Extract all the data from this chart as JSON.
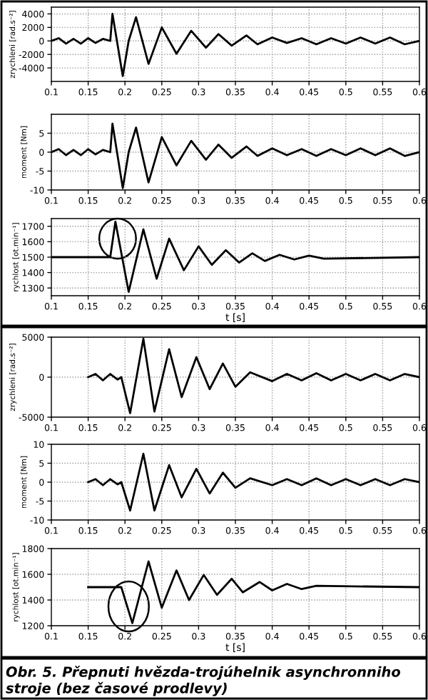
{
  "chart_data": [
    {
      "type": "line",
      "ylabel": "zrychleni [rad.s⁻²]",
      "grid": true,
      "line_style": "solid",
      "xlim": [
        0.1,
        0.6
      ],
      "xticks": [
        0.1,
        0.15,
        0.2,
        0.25,
        0.3,
        0.35,
        0.4,
        0.45,
        0.5,
        0.55,
        0.6
      ],
      "ylim": [
        -6000,
        5000
      ],
      "yticks": [
        -4000,
        -2000,
        0,
        2000,
        4000
      ],
      "series": [
        {
          "color": "#000000",
          "x": [
            0.1,
            0.11,
            0.12,
            0.13,
            0.14,
            0.15,
            0.16,
            0.17,
            0.18,
            0.183,
            0.197,
            0.205,
            0.215,
            0.232,
            0.25,
            0.27,
            0.29,
            0.31,
            0.327,
            0.345,
            0.365,
            0.38,
            0.4,
            0.42,
            0.44,
            0.46,
            0.48,
            0.5,
            0.52,
            0.54,
            0.56,
            0.58,
            0.6
          ],
          "values": [
            0,
            400,
            -400,
            300,
            -400,
            400,
            -300,
            300,
            0,
            4000,
            -5200,
            0,
            3500,
            -3400,
            2000,
            -1900,
            1500,
            -1000,
            1000,
            -700,
            800,
            -500,
            500,
            -300,
            400,
            -500,
            400,
            -400,
            500,
            -400,
            500,
            -500,
            0
          ]
        }
      ]
    },
    {
      "type": "line",
      "ylabel": "moment [Nm]",
      "grid": true,
      "line_style": "solid",
      "xlim": [
        0.1,
        0.6
      ],
      "xticks": [
        0.1,
        0.15,
        0.2,
        0.25,
        0.3,
        0.35,
        0.4,
        0.45,
        0.5,
        0.55,
        0.6
      ],
      "ylim": [
        -10,
        10
      ],
      "yticks": [
        -10,
        -5,
        0,
        5
      ],
      "series": [
        {
          "color": "#000000",
          "x": [
            0.1,
            0.11,
            0.12,
            0.13,
            0.14,
            0.15,
            0.16,
            0.17,
            0.18,
            0.183,
            0.197,
            0.205,
            0.215,
            0.232,
            0.25,
            0.27,
            0.29,
            0.31,
            0.327,
            0.345,
            0.365,
            0.38,
            0.4,
            0.42,
            0.44,
            0.46,
            0.48,
            0.5,
            0.52,
            0.54,
            0.56,
            0.58,
            0.6
          ],
          "values": [
            0,
            0.8,
            -0.8,
            0.6,
            -0.8,
            0.8,
            -0.6,
            0.6,
            0,
            7.5,
            -9.5,
            0,
            6.5,
            -8,
            4,
            -3.5,
            3,
            -2,
            2,
            -1.5,
            1.5,
            -1,
            1,
            -0.8,
            0.8,
            -1,
            0.8,
            -0.8,
            1,
            -0.8,
            1,
            -1,
            0
          ]
        }
      ]
    },
    {
      "type": "line",
      "ylabel": "rychlost [ot.min⁻¹]",
      "xlabel": "t [s]",
      "grid": true,
      "line_style": "solid",
      "xlim": [
        0.1,
        0.6
      ],
      "xticks": [
        0.1,
        0.15,
        0.2,
        0.25,
        0.3,
        0.35,
        0.4,
        0.45,
        0.5,
        0.55,
        0.6
      ],
      "ylim": [
        1250,
        1750
      ],
      "yticks": [
        1300,
        1400,
        1500,
        1600,
        1700
      ],
      "series": [
        {
          "color": "#000000",
          "x": [
            0.1,
            0.18,
            0.187,
            0.205,
            0.225,
            0.243,
            0.26,
            0.28,
            0.3,
            0.318,
            0.337,
            0.355,
            0.373,
            0.39,
            0.41,
            0.43,
            0.45,
            0.47,
            0.6
          ],
          "values": [
            1500,
            1500,
            1730,
            1275,
            1680,
            1360,
            1620,
            1415,
            1570,
            1450,
            1545,
            1465,
            1525,
            1475,
            1515,
            1485,
            1510,
            1490,
            1500
          ]
        }
      ]
    },
    {
      "type": "line",
      "ylabel": "zrychleni [rad.s⁻²]",
      "grid": true,
      "line_style": "solid",
      "xlim": [
        0.1,
        0.6
      ],
      "xticks": [
        0.1,
        0.15,
        0.2,
        0.25,
        0.3,
        0.35,
        0.4,
        0.45,
        0.5,
        0.55,
        0.6
      ],
      "ylim": [
        -5000,
        5000
      ],
      "yticks": [
        -5000,
        0,
        5000
      ],
      "series": [
        {
          "color": "#000000",
          "x": [
            0.15,
            0.16,
            0.17,
            0.18,
            0.19,
            0.195,
            0.207,
            0.225,
            0.24,
            0.26,
            0.277,
            0.297,
            0.315,
            0.333,
            0.35,
            0.37,
            0.4,
            0.42,
            0.44,
            0.46,
            0.48,
            0.5,
            0.52,
            0.54,
            0.56,
            0.58,
            0.6
          ],
          "values": [
            0,
            400,
            -400,
            400,
            -300,
            0,
            -4500,
            4800,
            -4300,
            3500,
            -2500,
            2500,
            -1500,
            1700,
            -1200,
            600,
            -500,
            400,
            -400,
            500,
            -400,
            400,
            -400,
            400,
            -400,
            400,
            0
          ]
        }
      ]
    },
    {
      "type": "line",
      "ylabel": "moment [Nm]",
      "grid": true,
      "line_style": "solid",
      "xlim": [
        0.1,
        0.6
      ],
      "xticks": [
        0.1,
        0.15,
        0.2,
        0.25,
        0.3,
        0.35,
        0.4,
        0.45,
        0.5,
        0.55,
        0.6
      ],
      "ylim": [
        -10,
        10
      ],
      "yticks": [
        -10,
        -5,
        0,
        5,
        10
      ],
      "series": [
        {
          "color": "#000000",
          "x": [
            0.15,
            0.16,
            0.17,
            0.18,
            0.19,
            0.195,
            0.207,
            0.225,
            0.24,
            0.26,
            0.277,
            0.297,
            0.315,
            0.333,
            0.35,
            0.37,
            0.4,
            0.42,
            0.44,
            0.46,
            0.48,
            0.5,
            0.52,
            0.54,
            0.56,
            0.58,
            0.6
          ],
          "values": [
            0,
            0.8,
            -0.8,
            0.8,
            -0.6,
            0,
            -7.5,
            7.5,
            -7.5,
            4.5,
            -4,
            3.5,
            -3,
            2.5,
            -1.5,
            1,
            -0.8,
            0.8,
            -0.8,
            1,
            -0.8,
            0.8,
            -0.8,
            0.8,
            -0.8,
            0.8,
            0
          ]
        }
      ]
    },
    {
      "type": "line",
      "ylabel": "rychlost [ot.min⁻¹]",
      "xlabel": "t [s]",
      "grid": true,
      "line_style": "solid",
      "xlim": [
        0.1,
        0.6
      ],
      "xticks": [
        0.1,
        0.15,
        0.2,
        0.25,
        0.3,
        0.35,
        0.4,
        0.45,
        0.5,
        0.55,
        0.6
      ],
      "ylim": [
        1200,
        1800
      ],
      "yticks": [
        1200,
        1400,
        1600,
        1800
      ],
      "series": [
        {
          "color": "#000000",
          "x": [
            0.15,
            0.195,
            0.21,
            0.232,
            0.25,
            0.27,
            0.287,
            0.307,
            0.325,
            0.345,
            0.36,
            0.383,
            0.4,
            0.42,
            0.44,
            0.46,
            0.6
          ],
          "values": [
            1500,
            1500,
            1220,
            1700,
            1340,
            1630,
            1400,
            1595,
            1440,
            1565,
            1460,
            1540,
            1475,
            1525,
            1485,
            1510,
            1500
          ]
        }
      ],
      "annotations": [
        "Obr. 5. Přepnuti hvězda-trojúhelnik asynchronniho stroje (bez časové prodlevy)"
      ]
    }
  ]
}
